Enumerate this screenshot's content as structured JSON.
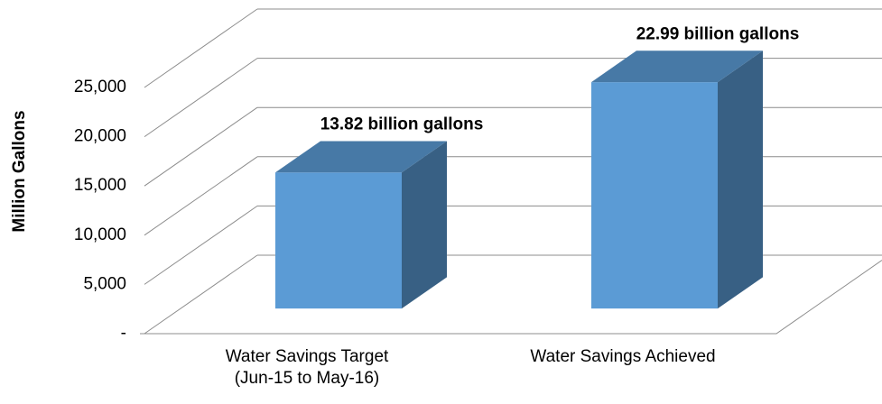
{
  "chart_data": {
    "type": "bar3d",
    "y_label": "Million Gallons",
    "categories": [
      "Water Savings Target (Jun-15 to May-16)",
      "Water Savings Achieved"
    ],
    "values": [
      13820,
      22990
    ],
    "value_labels": [
      "13.82 billion gallons",
      "22.99 billion gallons"
    ],
    "color": "#5b9bd5",
    "ylim": [
      0,
      25000
    ],
    "yticks": [
      {
        "value": 0,
        "label": "-"
      },
      {
        "value": 5000,
        "label": "5,000"
      },
      {
        "value": 10000,
        "label": "10,000"
      },
      {
        "value": 15000,
        "label": "15,000"
      },
      {
        "value": 20000,
        "label": "20,000"
      },
      {
        "value": 25000,
        "label": "25,000"
      }
    ],
    "grid": true
  }
}
